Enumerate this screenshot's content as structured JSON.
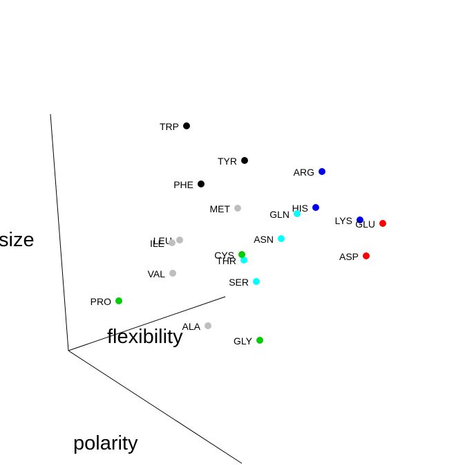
{
  "chart_data": {
    "type": "scatter",
    "projection": "3d",
    "axes": {
      "x": "polarity",
      "y": "flexibility",
      "z": "size"
    },
    "grid": false,
    "legend": "none",
    "colors": {
      "black": "#000000",
      "blue": "#0000ee",
      "red": "#ff0000",
      "cyan": "#00ffff",
      "gray": "#bebebe",
      "green": "#00cd00"
    },
    "points": [
      {
        "label": "TRP",
        "color": "black"
      },
      {
        "label": "TYR",
        "color": "black"
      },
      {
        "label": "PHE",
        "color": "black"
      },
      {
        "label": "ARG",
        "color": "blue"
      },
      {
        "label": "HIS",
        "color": "blue"
      },
      {
        "label": "LYS",
        "color": "blue"
      },
      {
        "label": "GLU",
        "color": "red"
      },
      {
        "label": "ASP",
        "color": "red"
      },
      {
        "label": "GLN",
        "color": "cyan"
      },
      {
        "label": "ASN",
        "color": "cyan"
      },
      {
        "label": "THR",
        "color": "cyan"
      },
      {
        "label": "SER",
        "color": "cyan"
      },
      {
        "label": "MET",
        "color": "gray"
      },
      {
        "label": "LEU",
        "color": "gray"
      },
      {
        "label": "ILE",
        "color": "gray"
      },
      {
        "label": "VAL",
        "color": "gray"
      },
      {
        "label": "ALA",
        "color": "gray"
      },
      {
        "label": "CYS",
        "color": "green"
      },
      {
        "label": "PRO",
        "color": "green"
      },
      {
        "label": "GLY",
        "color": "green"
      }
    ]
  }
}
